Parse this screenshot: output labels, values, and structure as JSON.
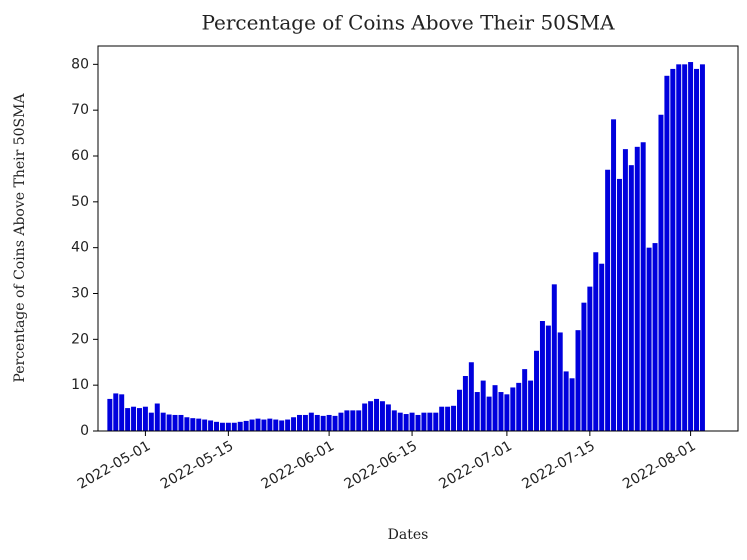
{
  "chart_data": {
    "type": "bar",
    "title": "Percentage of Coins Above Their 50SMA",
    "xlabel": "Dates",
    "ylabel": "Percentage of Coins Above Their 50SMA",
    "color": "#0000dd",
    "x": [
      "2022-04-25",
      "2022-04-26",
      "2022-04-27",
      "2022-04-28",
      "2022-04-29",
      "2022-04-30",
      "2022-05-01",
      "2022-05-02",
      "2022-05-03",
      "2022-05-04",
      "2022-05-05",
      "2022-05-06",
      "2022-05-07",
      "2022-05-08",
      "2022-05-09",
      "2022-05-10",
      "2022-05-11",
      "2022-05-12",
      "2022-05-13",
      "2022-05-14",
      "2022-05-15",
      "2022-05-16",
      "2022-05-17",
      "2022-05-18",
      "2022-05-19",
      "2022-05-20",
      "2022-05-21",
      "2022-05-22",
      "2022-05-23",
      "2022-05-24",
      "2022-05-25",
      "2022-05-26",
      "2022-05-27",
      "2022-05-28",
      "2022-05-29",
      "2022-05-30",
      "2022-05-31",
      "2022-06-01",
      "2022-06-02",
      "2022-06-03",
      "2022-06-04",
      "2022-06-05",
      "2022-06-06",
      "2022-06-07",
      "2022-06-08",
      "2022-06-09",
      "2022-06-10",
      "2022-06-11",
      "2022-06-12",
      "2022-06-13",
      "2022-06-14",
      "2022-06-15",
      "2022-06-16",
      "2022-06-17",
      "2022-06-18",
      "2022-06-19",
      "2022-06-20",
      "2022-06-21",
      "2022-06-22",
      "2022-06-23",
      "2022-06-24",
      "2022-06-25",
      "2022-06-26",
      "2022-06-27",
      "2022-06-28",
      "2022-06-29",
      "2022-06-30",
      "2022-07-01",
      "2022-07-02",
      "2022-07-03",
      "2022-07-04",
      "2022-07-05",
      "2022-07-06",
      "2022-07-07",
      "2022-07-08",
      "2022-07-09",
      "2022-07-10",
      "2022-07-11",
      "2022-07-12",
      "2022-07-13",
      "2022-07-14",
      "2022-07-15",
      "2022-07-16",
      "2022-07-17",
      "2022-07-18",
      "2022-07-19",
      "2022-07-20",
      "2022-07-21",
      "2022-07-22",
      "2022-07-23",
      "2022-07-24",
      "2022-07-25",
      "2022-07-26",
      "2022-07-27",
      "2022-07-28",
      "2022-07-29",
      "2022-07-30",
      "2022-07-31",
      "2022-08-01",
      "2022-08-02",
      "2022-08-03"
    ],
    "values": [
      7,
      8.2,
      8,
      5,
      5.3,
      5,
      5.3,
      4,
      6,
      4,
      3.6,
      3.5,
      3.5,
      3,
      2.8,
      2.7,
      2.5,
      2.3,
      2,
      1.8,
      1.8,
      1.8,
      2,
      2.2,
      2.5,
      2.7,
      2.5,
      2.7,
      2.5,
      2.3,
      2.5,
      3,
      3.5,
      3.5,
      4,
      3.5,
      3.3,
      3.5,
      3.3,
      4,
      4.5,
      4.5,
      4.5,
      6,
      6.5,
      7,
      6.5,
      5.8,
      4.5,
      4,
      3.7,
      4,
      3.5,
      4,
      4,
      4,
      5.3,
      5.3,
      5.5,
      9,
      12,
      15,
      8.5,
      11,
      7.5,
      10,
      8.5,
      8,
      9.5,
      10.5,
      13.5,
      11,
      17.5,
      24,
      23,
      32,
      21.5,
      13,
      11.5,
      22,
      28,
      31.5,
      39,
      36.5,
      57,
      68,
      55,
      61.5,
      58,
      62,
      63,
      40,
      41,
      69,
      77.5,
      79,
      80,
      80,
      80.5,
      79,
      80
    ],
    "xlim": [
      "2022-04-23",
      "2022-08-09"
    ],
    "xticks": [
      "2022-05-01",
      "2022-05-15",
      "2022-06-01",
      "2022-06-15",
      "2022-07-01",
      "2022-07-15",
      "2022-08-01"
    ],
    "ylim": [
      0,
      84
    ],
    "yticks": [
      0,
      10,
      20,
      30,
      40,
      50,
      60,
      70,
      80
    ]
  }
}
